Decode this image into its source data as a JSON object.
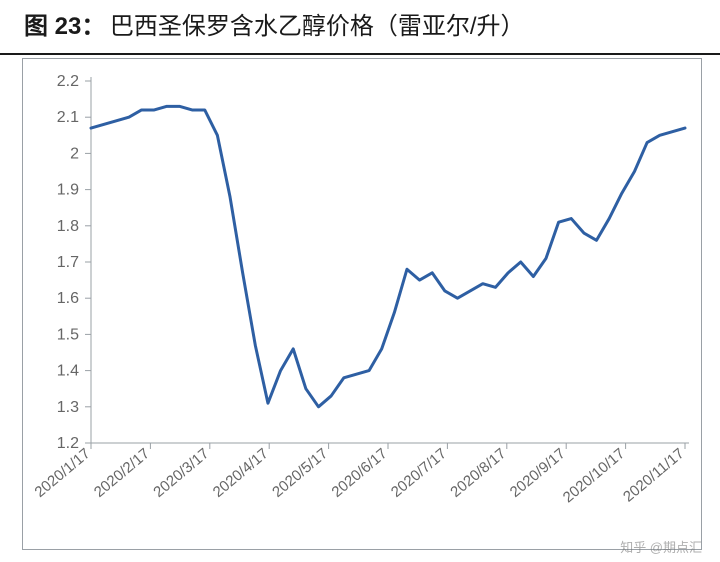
{
  "figure": {
    "label": "图 23：",
    "title": "巴西圣保罗含水乙醇价格（雷亚尔/升）"
  },
  "watermark": "知乎 @期点汇",
  "chart": {
    "type": "line",
    "background_color": "#ffffff",
    "border_color": "#9aa0a6",
    "line_color": "#2e5fa3",
    "line_width": 3,
    "title_fontsize": 24,
    "axis_label_fontsize": 16,
    "axis_label_color": "#666666",
    "ylim": [
      1.2,
      2.2
    ],
    "ytick_step": 0.1,
    "yticks": [
      "2.2",
      "2.1",
      "2",
      "1.9",
      "1.8",
      "1.7",
      "1.6",
      "1.5",
      "1.4",
      "1.3",
      "1.2"
    ],
    "xticks": [
      "2020/1/17",
      "2020/2/17",
      "2020/3/17",
      "2020/4/17",
      "2020/5/17",
      "2020/6/17",
      "2020/7/17",
      "2020/8/17",
      "2020/9/17",
      "2020/10/17",
      "2020/11/17"
    ],
    "x_index_range": [
      0,
      47
    ],
    "series": [
      {
        "name": "price",
        "color": "#2e5fa3",
        "values": [
          2.07,
          2.08,
          2.09,
          2.1,
          2.12,
          2.12,
          2.13,
          2.13,
          2.12,
          2.12,
          2.05,
          1.88,
          1.67,
          1.47,
          1.31,
          1.4,
          1.46,
          1.35,
          1.3,
          1.33,
          1.38,
          1.39,
          1.4,
          1.46,
          1.56,
          1.68,
          1.65,
          1.67,
          1.62,
          1.6,
          1.62,
          1.64,
          1.63,
          1.67,
          1.7,
          1.66,
          1.71,
          1.81,
          1.82,
          1.78,
          1.76,
          1.82,
          1.89,
          1.95,
          2.03,
          2.05,
          2.06,
          2.07
        ]
      }
    ]
  }
}
